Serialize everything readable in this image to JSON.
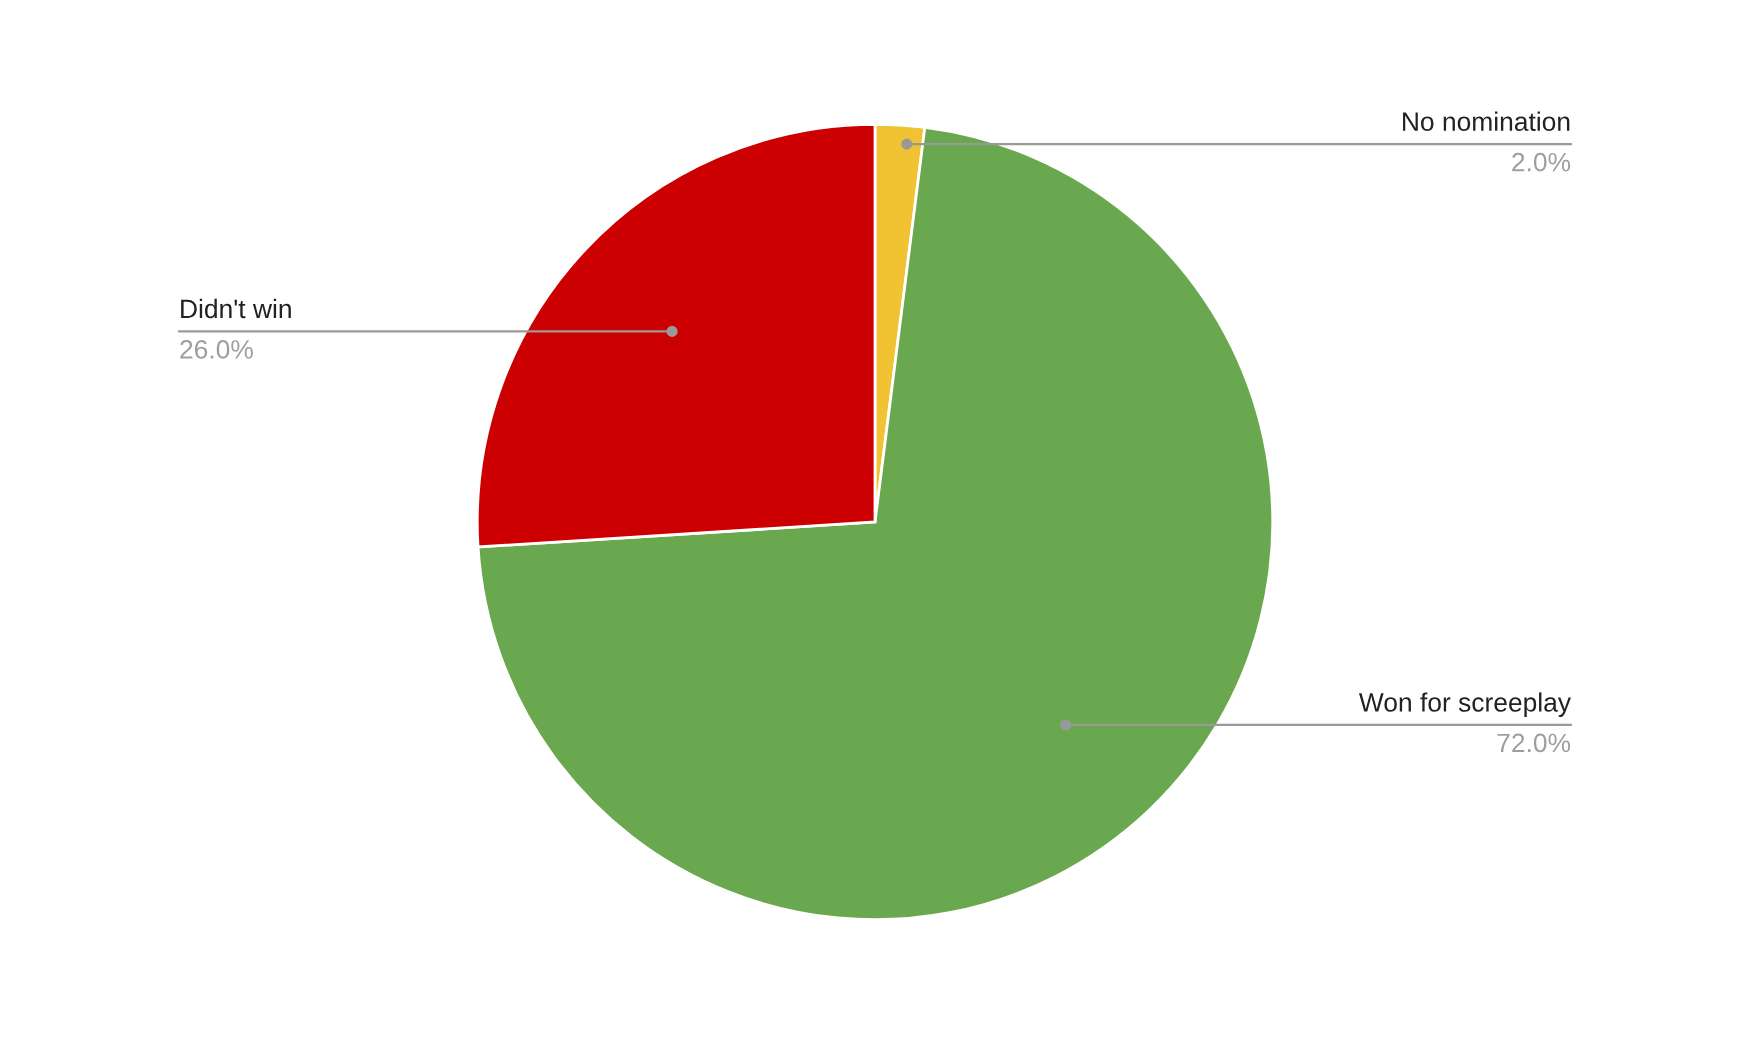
{
  "chart_data": {
    "type": "pie",
    "categories": [
      "No nomination",
      "Won for screeplay",
      "Didn't win"
    ],
    "values": [
      2.0,
      72.0,
      26.0
    ],
    "colors": [
      "#f1c232",
      "#6aa84f",
      "#cc0000"
    ],
    "value_labels": [
      "2.0%",
      "72.0%",
      "26.0%"
    ],
    "legend": false
  }
}
